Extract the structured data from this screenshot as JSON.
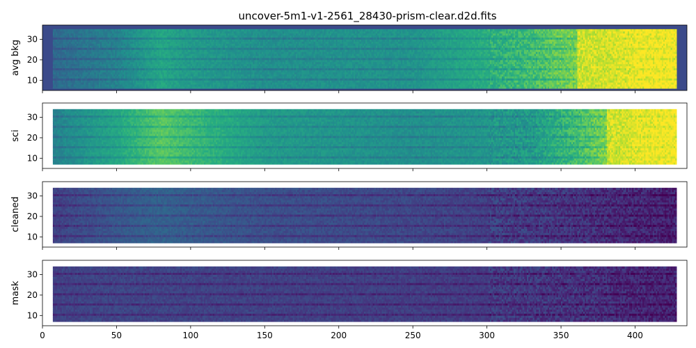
{
  "chart_data": [
    {
      "type": "heatmap",
      "title": "uncover-5m1-v1-2561_28430-prism-clear.d2d.fits",
      "xlabel": "",
      "ylabel": "avg bkg",
      "xlim": [
        0,
        435
      ],
      "ylim": [
        5,
        37
      ],
      "xticks": [
        0,
        50,
        100,
        150,
        200,
        250,
        300,
        350,
        400
      ],
      "yticks": [
        10,
        20,
        30
      ],
      "data_region": {
        "x": [
          7,
          428
        ],
        "y": [
          6,
          35
        ]
      },
      "colormap": "viridis",
      "background_color": "#3b4a8a",
      "bright_region_x": [
        360,
        428
      ],
      "profile_x": [
        7,
        50,
        80,
        95,
        150,
        250,
        330,
        370,
        400,
        428
      ],
      "profile_level": [
        0.35,
        0.45,
        0.6,
        0.55,
        0.5,
        0.52,
        0.7,
        0.85,
        0.97,
        1.0
      ],
      "grid": false
    },
    {
      "type": "heatmap",
      "xlabel": "",
      "ylabel": "sci",
      "xlim": [
        0,
        435
      ],
      "ylim": [
        5,
        37
      ],
      "xticks": [
        0,
        50,
        100,
        150,
        200,
        250,
        300,
        350,
        400
      ],
      "yticks": [
        10,
        20,
        30
      ],
      "data_region": {
        "x": [
          7,
          428
        ],
        "y": [
          7,
          34
        ]
      },
      "colormap": "viridis",
      "bright_region_x": [
        380,
        428
      ],
      "profile_x": [
        7,
        50,
        80,
        95,
        150,
        250,
        330,
        370,
        400,
        428
      ],
      "profile_level": [
        0.45,
        0.6,
        0.75,
        0.7,
        0.55,
        0.5,
        0.55,
        0.75,
        0.95,
        1.0
      ],
      "grid": false
    },
    {
      "type": "heatmap",
      "xlabel": "",
      "ylabel": "cleaned",
      "xlim": [
        0,
        435
      ],
      "ylim": [
        5,
        37
      ],
      "xticks": [
        0,
        50,
        100,
        150,
        200,
        250,
        300,
        350,
        400
      ],
      "yticks": [
        10,
        20,
        30
      ],
      "data_region": {
        "x": [
          7,
          428
        ],
        "y": [
          7,
          34
        ]
      },
      "colormap": "viridis",
      "profile_x": [
        7,
        50,
        80,
        95,
        150,
        250,
        330,
        370,
        400,
        428
      ],
      "profile_level": [
        0.2,
        0.28,
        0.32,
        0.3,
        0.25,
        0.22,
        0.18,
        0.15,
        0.12,
        0.1
      ],
      "grid": false
    },
    {
      "type": "heatmap",
      "xlabel": "",
      "ylabel": "mask",
      "xlim": [
        0,
        435
      ],
      "ylim": [
        5,
        37
      ],
      "xticks": [
        0,
        50,
        100,
        150,
        200,
        250,
        300,
        350,
        400
      ],
      "xticklabels": [
        "0",
        "50",
        "100",
        "150",
        "200",
        "250",
        "300",
        "350",
        "400"
      ],
      "yticks": [
        10,
        20,
        30
      ],
      "data_region": {
        "x": [
          7,
          428
        ],
        "y": [
          7,
          34
        ]
      },
      "colormap": "viridis",
      "profile_x": [
        7,
        50,
        150,
        250,
        330,
        370,
        400,
        428
      ],
      "profile_level": [
        0.2,
        0.21,
        0.2,
        0.19,
        0.17,
        0.15,
        0.12,
        0.1
      ],
      "grid": false
    }
  ]
}
